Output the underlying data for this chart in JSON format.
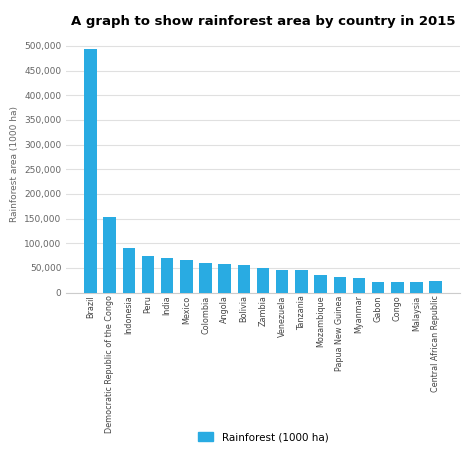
{
  "title": "A graph to show rainforest area by country in 2015",
  "ylabel": "Rainforest area (1000 ha)",
  "legend_label": "Rainforest (1000 ha)",
  "bar_color": "#29ABE2",
  "background_color": "#ffffff",
  "grid_color": "#e0e0e0",
  "categories": [
    "Brazil",
    "Democratic Republic of the Congo",
    "Indonesia",
    "Peru",
    "India",
    "Mexico",
    "Colombia",
    "Angola",
    "Bolivia",
    "Zambia",
    "Venezuela",
    "Tanzania",
    "Mozambique",
    "Papua New Guinea",
    "Myanmar",
    "Gabon",
    "Congo",
    "Malaysia",
    "Central African Republic"
  ],
  "values": [
    493538,
    152578,
    91010,
    74245,
    70682,
    65692,
    59142,
    58480,
    55500,
    49468,
    46275,
    44999,
    35775,
    32088,
    28995,
    22000,
    22060,
    22195,
    22605
  ],
  "yticks": [
    0,
    50000,
    100000,
    150000,
    200000,
    250000,
    300000,
    350000,
    400000,
    450000,
    500000
  ],
  "ylim": [
    0,
    520000
  ]
}
